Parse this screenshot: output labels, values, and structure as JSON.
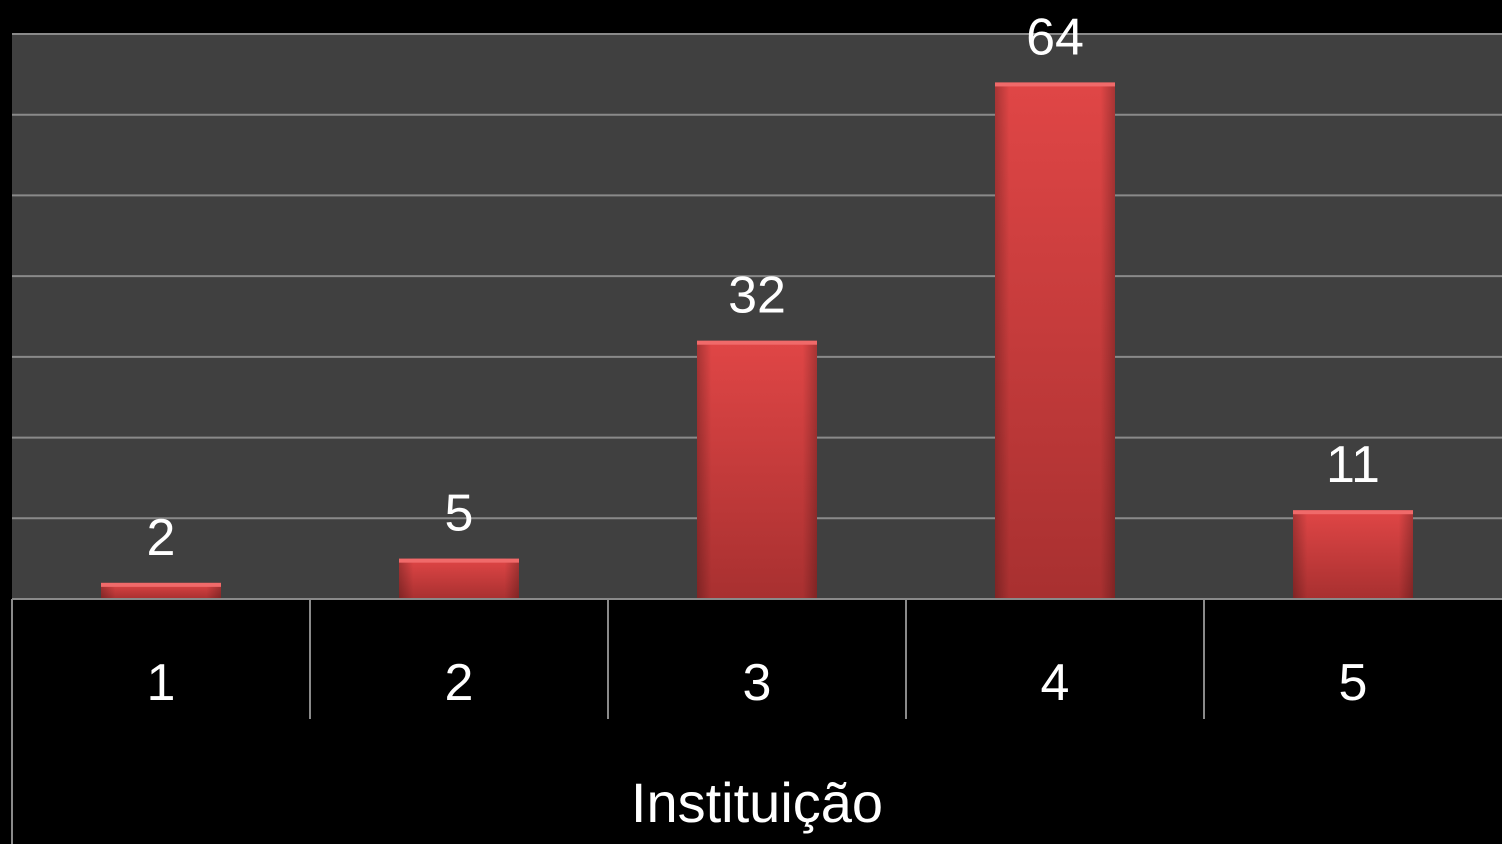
{
  "chart_data": {
    "type": "bar",
    "categories": [
      "1",
      "2",
      "3",
      "4",
      "5"
    ],
    "values": [
      2,
      5,
      32,
      64,
      11
    ],
    "title": "",
    "xlabel": "Instituição",
    "ylabel": "",
    "ylim": [
      0,
      70
    ],
    "grid": true,
    "legend": "none",
    "data_labels": [
      "2",
      "5",
      "32",
      "64",
      "11"
    ],
    "colors": {
      "bar": "#d64040",
      "plot_background": "#404040",
      "page_background": "#000000",
      "gridline": "#8a8a8a",
      "text": "#ffffff"
    }
  }
}
